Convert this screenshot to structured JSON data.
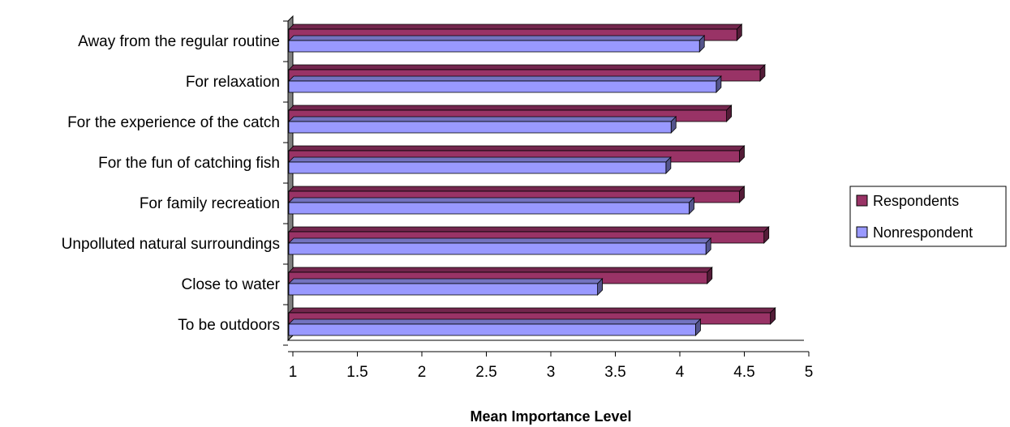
{
  "chart_data": {
    "type": "bar",
    "orientation": "horizontal",
    "style": "3d",
    "title": "",
    "xlabel": "Mean Importance Level",
    "ylabel": "",
    "xlim": [
      1,
      5
    ],
    "xticks": [
      "1",
      "1.5",
      "2",
      "2.5",
      "3",
      "3.5",
      "4",
      "4.5",
      "5"
    ],
    "grid": false,
    "legend_position": "right",
    "categories": [
      "Away from the regular routine",
      "For relaxation",
      "For the experience of the catch",
      "For the fun of catching fish",
      "For family recreation",
      "Unpolluted natural surroundings",
      "Close to water",
      "To be outdoors"
    ],
    "series": [
      {
        "name": "Respondents",
        "color": "#993366",
        "values": [
          4.48,
          4.66,
          4.4,
          4.5,
          4.5,
          4.69,
          4.25,
          4.74
        ]
      },
      {
        "name": "Nonrespondent",
        "color": "#9999FF",
        "values": [
          4.19,
          4.32,
          3.97,
          3.93,
          4.11,
          4.24,
          3.4,
          4.16
        ]
      }
    ]
  }
}
